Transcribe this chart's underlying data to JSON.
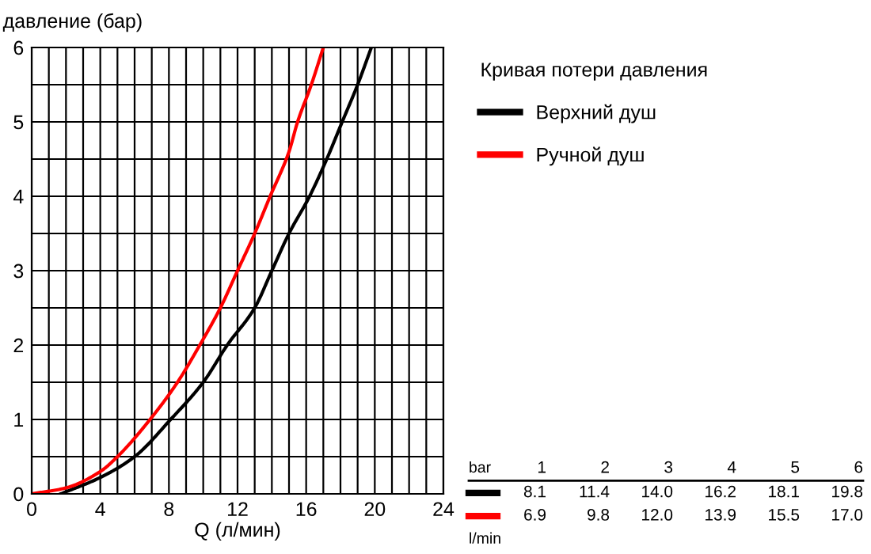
{
  "chart_data": {
    "type": "line",
    "xlabel": "Q (л/мин)",
    "ylabel": "давление (бар)",
    "legend_title": "Кривая потери давления",
    "legend": "right",
    "xlim": [
      0,
      24
    ],
    "ylim": [
      0,
      6
    ],
    "xticks": [
      0,
      4,
      8,
      12,
      16,
      20,
      24
    ],
    "yticks": [
      0,
      1,
      2,
      3,
      4,
      5,
      6
    ],
    "grid": true,
    "marker": "none",
    "line_style": "solid",
    "series": [
      {
        "name": "Верхний душ",
        "color": "#000000",
        "x": [
          1.7,
          4,
          6,
          8.1,
          10,
          11.4,
          13,
          14.0,
          15,
          16.2,
          17.2,
          18.1,
          19,
          19.8
        ],
        "values": [
          0,
          0.22,
          0.5,
          1,
          1.5,
          2,
          2.5,
          3,
          3.5,
          4,
          4.5,
          5,
          5.5,
          6
        ]
      },
      {
        "name": "Ручной душ",
        "color": "#ff0000",
        "x": [
          0,
          2,
          4,
          5,
          6.9,
          8.5,
          9.8,
          11,
          12.0,
          13,
          13.9,
          15,
          15.5,
          16.3,
          17.0
        ],
        "values": [
          0,
          0.08,
          0.3,
          0.5,
          1,
          1.5,
          2,
          2.5,
          3,
          3.5,
          4,
          4.6,
          5,
          5.5,
          6
        ]
      }
    ],
    "annotations": [
      "bar",
      "1",
      "2",
      "3",
      "4",
      "5",
      "6",
      "8.1",
      "11.4",
      "14.0",
      "16.2",
      "18.1",
      "19.8",
      "6.9",
      "9.8",
      "12.0",
      "13.9",
      "15.5",
      "17.0",
      "l/min"
    ]
  }
}
